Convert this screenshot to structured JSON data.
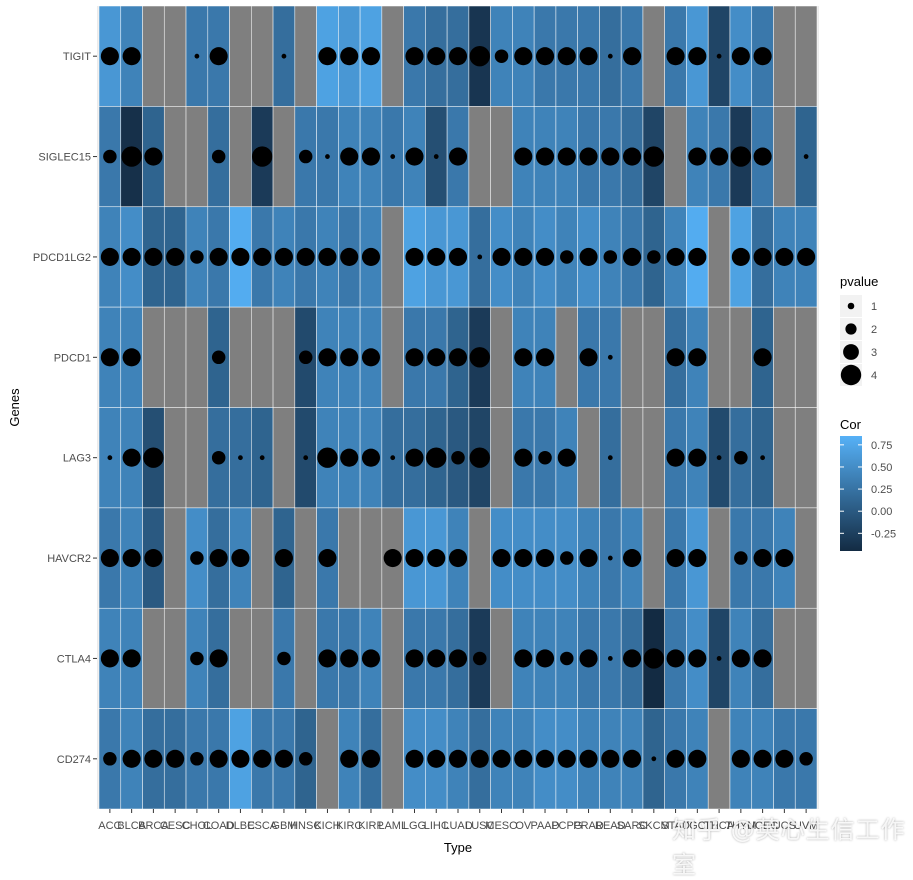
{
  "chart_data": {
    "type": "heatmap",
    "title": "",
    "xlabel": "Type",
    "ylabel": "Genes",
    "x": [
      "ACC",
      "BLCA",
      "BRCA",
      "CESC",
      "CHOL",
      "COAD",
      "DLBC",
      "ESCA",
      "GBM",
      "HNSC",
      "KICH",
      "KIRC",
      "KIRP",
      "LAML",
      "LGG",
      "LIHC",
      "LUAD",
      "LUSC",
      "MESO",
      "OV",
      "PAAD",
      "PCPG",
      "PRAD",
      "READ",
      "SARC",
      "SKCM",
      "STAD",
      "TGCT",
      "THCA",
      "THYM",
      "UCEC",
      "UCS",
      "UVM"
    ],
    "y": [
      "TIGIT",
      "SIGLEC15",
      "PDCD1LG2",
      "PDCD1",
      "LAG3",
      "HAVCR2",
      "CTLA4",
      "CD274"
    ],
    "cor": [
      [
        0.6,
        0.4,
        null,
        null,
        0.3,
        0.3,
        null,
        null,
        0.2,
        null,
        0.7,
        0.6,
        0.7,
        null,
        0.3,
        0.2,
        0.2,
        -0.35,
        0.4,
        0.4,
        0.3,
        0.3,
        0.3,
        0.2,
        0.3,
        null,
        0.3,
        0.6,
        -0.2,
        0.5,
        0.3,
        null,
        null
      ],
      [
        0.3,
        -0.4,
        0.1,
        null,
        null,
        0.2,
        null,
        -0.3,
        null,
        0.3,
        0.3,
        0.4,
        0.4,
        0.3,
        0.4,
        -0.1,
        0.3,
        null,
        null,
        0.4,
        0.4,
        0.4,
        0.3,
        0.3,
        0.2,
        -0.2,
        null,
        0.4,
        0.3,
        -0.3,
        0.3,
        null,
        0.1
      ],
      [
        0.4,
        0.5,
        0.1,
        0.1,
        0.4,
        0.3,
        0.8,
        0.3,
        0.4,
        0.3,
        0.4,
        0.3,
        0.4,
        null,
        0.7,
        0.6,
        0.6,
        0.2,
        0.5,
        0.4,
        0.5,
        0.4,
        0.5,
        0.4,
        0.3,
        0.1,
        0.4,
        0.8,
        null,
        0.7,
        0.2,
        0.4,
        0.4
      ],
      [
        0.4,
        0.4,
        null,
        null,
        null,
        0.1,
        null,
        null,
        null,
        -0.15,
        0.4,
        0.4,
        0.4,
        null,
        0.3,
        0.3,
        0.1,
        -0.3,
        null,
        0.4,
        0.4,
        null,
        0.3,
        0.3,
        null,
        null,
        0.2,
        0.4,
        null,
        null,
        0.1,
        null,
        null
      ],
      [
        0.4,
        0.4,
        -0.1,
        null,
        null,
        0.2,
        0.2,
        0.1,
        null,
        -0.15,
        0.4,
        0.4,
        0.4,
        0.2,
        0.2,
        0.1,
        0.0,
        -0.2,
        null,
        0.3,
        0.3,
        0.4,
        null,
        0.2,
        null,
        null,
        0.3,
        0.4,
        -0.15,
        0.2,
        0.1,
        null,
        null
      ],
      [
        0.3,
        0.4,
        0.0,
        null,
        0.5,
        0.2,
        0.4,
        null,
        0.1,
        null,
        0.3,
        null,
        null,
        null,
        0.6,
        0.6,
        0.4,
        null,
        0.5,
        0.5,
        0.5,
        0.5,
        0.4,
        0.3,
        0.4,
        null,
        0.3,
        0.6,
        null,
        0.3,
        0.3,
        0.4,
        null
      ],
      [
        0.4,
        0.4,
        null,
        null,
        0.4,
        0.2,
        null,
        null,
        0.3,
        null,
        0.3,
        0.3,
        0.4,
        null,
        0.3,
        0.3,
        0.2,
        -0.3,
        null,
        0.4,
        0.4,
        0.4,
        0.3,
        0.3,
        0.2,
        -0.45,
        0.3,
        0.5,
        -0.2,
        0.4,
        0.2,
        null,
        null
      ],
      [
        0.3,
        0.4,
        0.2,
        0.2,
        0.3,
        0.3,
        0.7,
        0.3,
        0.3,
        0.1,
        null,
        0.4,
        0.2,
        null,
        0.5,
        0.5,
        0.4,
        0.2,
        0.4,
        0.4,
        0.5,
        0.5,
        0.4,
        0.4,
        0.4,
        0.1,
        0.3,
        0.4,
        null,
        0.4,
        0.4,
        0.3,
        0.3
      ]
    ],
    "pvalue": [
      [
        3.5,
        3.5,
        null,
        null,
        0.6,
        3.5,
        null,
        null,
        0.6,
        null,
        3.5,
        3.5,
        3.5,
        null,
        3.5,
        3.5,
        3.5,
        4,
        2.5,
        3.5,
        3.5,
        3.5,
        3.5,
        0.6,
        3.5,
        null,
        3.5,
        3.5,
        0.6,
        3.5,
        3.5,
        null,
        null
      ],
      [
        2.5,
        4,
        3.5,
        null,
        null,
        2.5,
        null,
        4,
        null,
        2.5,
        0.6,
        3.5,
        3.5,
        0.6,
        3.5,
        0.6,
        3.5,
        null,
        null,
        3.5,
        3.5,
        3.5,
        3.5,
        3.5,
        3.5,
        4,
        null,
        3.5,
        3.5,
        4,
        3.5,
        null,
        0.6
      ],
      [
        3.5,
        3.5,
        3.5,
        3.5,
        2.5,
        3.5,
        3.5,
        3.5,
        3.5,
        3.5,
        3.5,
        3.5,
        3.5,
        null,
        3.5,
        3.5,
        3.5,
        0.6,
        3.5,
        3.5,
        3.5,
        2.5,
        3.5,
        2.5,
        3.5,
        2.5,
        3.5,
        3.5,
        null,
        3.5,
        3.5,
        3.5,
        3.5
      ],
      [
        3.5,
        3.5,
        null,
        null,
        null,
        2.5,
        null,
        null,
        null,
        2.5,
        3.5,
        3.5,
        3.5,
        null,
        3.5,
        3.5,
        3.5,
        4,
        null,
        3.5,
        3.5,
        null,
        3.5,
        0.6,
        null,
        null,
        3.5,
        3.5,
        null,
        null,
        3.5,
        null,
        null
      ],
      [
        0.6,
        3.5,
        4,
        null,
        null,
        2.5,
        0.6,
        0.6,
        null,
        0.6,
        4,
        3.5,
        3.5,
        0.6,
        3.5,
        4,
        2.5,
        4,
        null,
        3.5,
        2.5,
        3.5,
        null,
        0.6,
        null,
        null,
        3.5,
        3.5,
        0.6,
        2.5,
        0.6,
        null,
        null
      ],
      [
        3.5,
        3.5,
        3.5,
        null,
        2.5,
        3.5,
        3.5,
        null,
        3.5,
        null,
        3.5,
        null,
        null,
        3.5,
        3.5,
        3.5,
        3.5,
        null,
        3.5,
        3.5,
        3.5,
        2.5,
        3.5,
        0.6,
        3.5,
        null,
        3.5,
        3.5,
        null,
        2.5,
        3.5,
        3.5,
        null
      ],
      [
        3.5,
        3.5,
        null,
        null,
        2.5,
        3.5,
        null,
        null,
        2.5,
        null,
        3.5,
        3.5,
        3.5,
        null,
        3.5,
        3.5,
        3.5,
        2.5,
        null,
        3.5,
        3.5,
        2.5,
        3.5,
        0.6,
        3.5,
        4,
        3.5,
        3.5,
        0.6,
        3.5,
        3.5,
        null,
        null
      ],
      [
        2.5,
        3.5,
        3.5,
        3.5,
        2.5,
        3.5,
        3.5,
        3.5,
        3.5,
        2.5,
        null,
        3.5,
        3.5,
        null,
        3.5,
        3.5,
        3.5,
        3.5,
        3.5,
        3.5,
        3.5,
        3.5,
        3.5,
        3.5,
        3.5,
        0.6,
        3.5,
        3.5,
        null,
        3.5,
        3.5,
        3.5,
        2.5
      ]
    ],
    "legend_pvalue": {
      "title": "pvalue",
      "values": [
        "1",
        "2",
        "3",
        "4"
      ]
    },
    "legend_cor": {
      "title": "Cor",
      "ticks": [
        "0.75",
        "0.50",
        "0.25",
        "0.00",
        "-0.25"
      ],
      "range": [
        -0.45,
        0.85
      ]
    },
    "colors": {
      "low": "#132b43",
      "high": "#56b1f7",
      "na": "#7f7f7f",
      "panel": "#ebebeb",
      "point": "#000000"
    },
    "legend_placement": "right",
    "grid": true
  },
  "watermark": "知乎 @英心生信工作室"
}
